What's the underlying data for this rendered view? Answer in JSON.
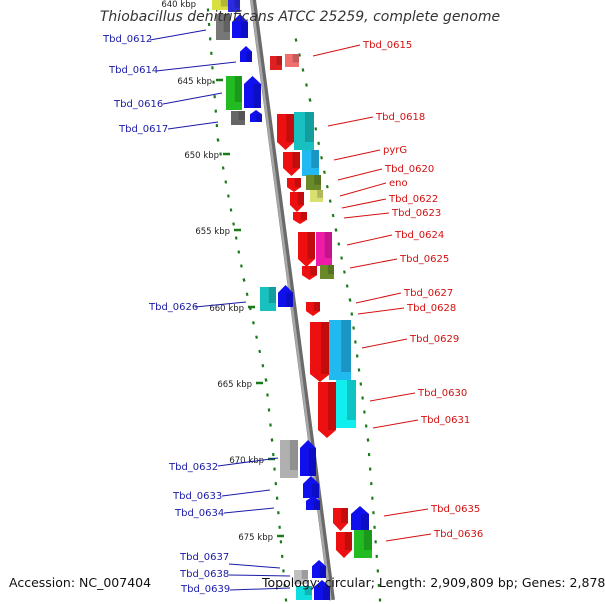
{
  "header": {
    "title": "Thiobacillus denitrificans ATCC 25259, complete genome"
  },
  "footer": {
    "accession": "Accession: NC_007404",
    "summary": "Topology: circular; Length: 2,909,809 bp; Genes: 2,878"
  },
  "colors": {
    "backbone": "#8f8f8f",
    "left_label": "#1a1aa8",
    "right_label": "#d41010",
    "tick": "#1a7a1a"
  },
  "scale": {
    "partial_label": "640 kbp",
    "ticks": [
      "645 kbp",
      "650 kbp",
      "655 kbp",
      "660 kbp",
      "665 kbp",
      "670 kbp",
      "675 kbp"
    ]
  },
  "left_labels": [
    "Tbd_0612",
    "Tbd_0614",
    "Tbd_0616",
    "Tbd_0617",
    "Tbd_0626",
    "Tbd_0632",
    "Tbd_0633",
    "Tbd_0634",
    "Tbd_0637",
    "Tbd_0638",
    "Tbd_0639"
  ],
  "right_labels": [
    "Tbd_0615",
    "Tbd_0618",
    "pyrG",
    "Tbd_0620",
    "eno",
    "Tbd_0622",
    "Tbd_0623",
    "Tbd_0624",
    "Tbd_0625",
    "Tbd_0627",
    "Tbd_0628",
    "Tbd_0629",
    "Tbd_0630",
    "Tbd_0631",
    "Tbd_0635",
    "Tbd_0636"
  ]
}
